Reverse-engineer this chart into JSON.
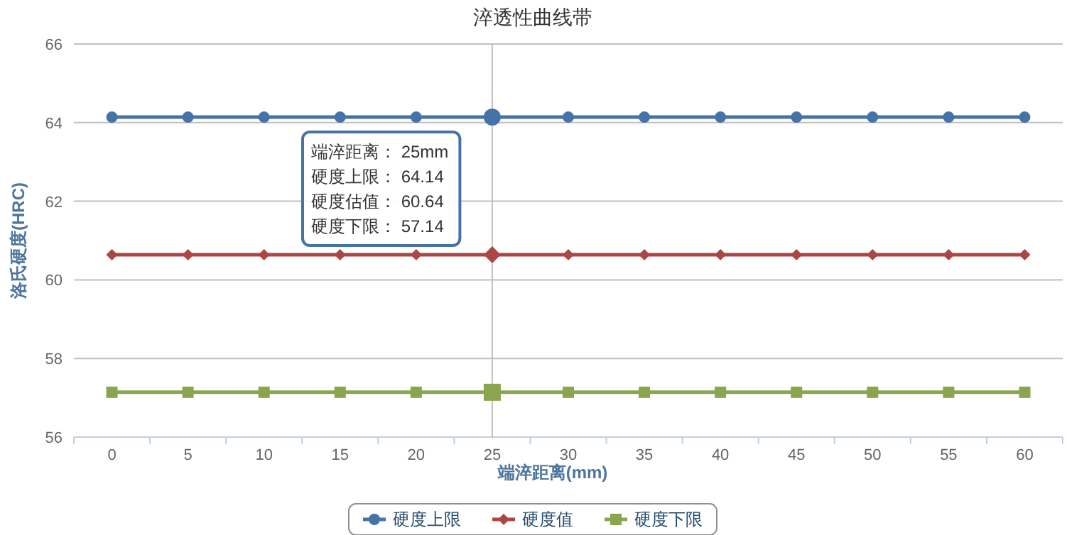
{
  "chart_data": {
    "type": "line",
    "title": "淬透性曲线带",
    "xlabel": "端淬距离(mm)",
    "ylabel": "洛氏硬度(HRC)",
    "categories": [
      "0",
      "5",
      "10",
      "15",
      "20",
      "25",
      "30",
      "35",
      "40",
      "45",
      "50",
      "55",
      "60"
    ],
    "series": [
      {
        "name": "硬度上限",
        "color": "#4572a7",
        "marker": "circle",
        "values": [
          64.14,
          64.14,
          64.14,
          64.14,
          64.14,
          64.14,
          64.14,
          64.14,
          64.14,
          64.14,
          64.14,
          64.14,
          64.14
        ]
      },
      {
        "name": "硬度值",
        "color": "#aa4643",
        "marker": "diamond",
        "values": [
          60.64,
          60.64,
          60.64,
          60.64,
          60.64,
          60.64,
          60.64,
          60.64,
          60.64,
          60.64,
          60.64,
          60.64,
          60.64
        ]
      },
      {
        "name": "硬度下限",
        "color": "#89a54e",
        "marker": "square",
        "values": [
          57.14,
          57.14,
          57.14,
          57.14,
          57.14,
          57.14,
          57.14,
          57.14,
          57.14,
          57.14,
          57.14,
          57.14,
          57.14
        ]
      }
    ],
    "ylim": [
      56,
      66
    ],
    "yticks": [
      56,
      58,
      60,
      62,
      64,
      66
    ],
    "grid": "y",
    "legend": "bottom",
    "ref_lines": [
      {
        "axis": "x",
        "value": "25",
        "color": "#c0c0c0"
      }
    ],
    "annotations": [
      "端淬距离： 25mm",
      "硬度上限： 64.14",
      "硬度估值： 60.64",
      "硬度下限： 57.14"
    ]
  }
}
